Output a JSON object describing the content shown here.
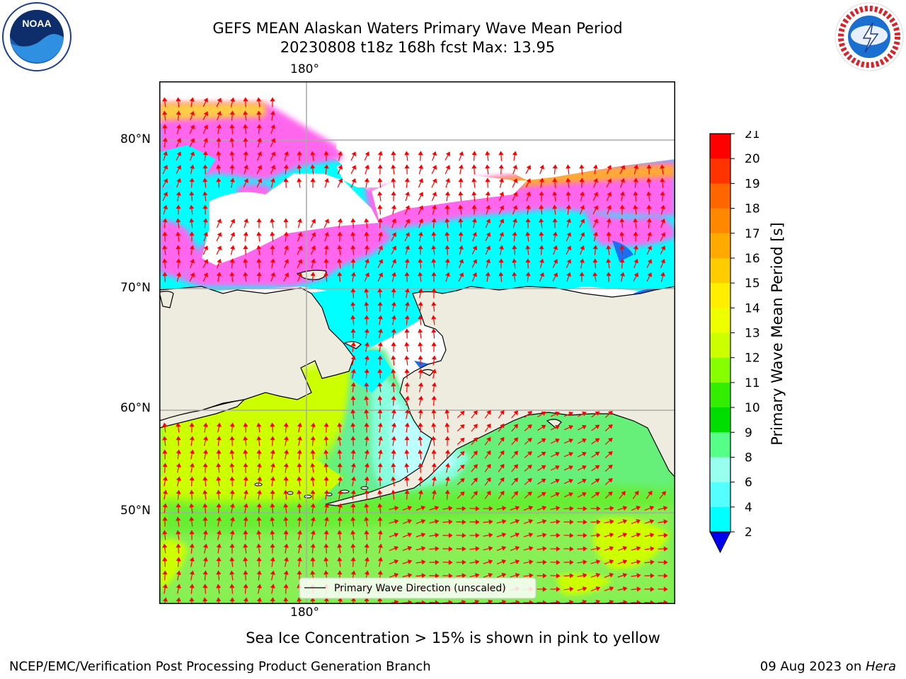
{
  "header": {
    "title_line1": "GEFS MEAN Alaskan Waters Primary Wave Mean Period",
    "title_line2": "20230808 t18z 168h fcst   Max: 13.95"
  },
  "logos": {
    "left": "noaa-logo",
    "left_text": "NOAA",
    "right": "nws-logo",
    "right_text": "NATIONAL WEATHER SERVICE"
  },
  "map": {
    "lon_label_top": "180°",
    "lon_label_bottom": "180°",
    "lat_labels": [
      "80°N",
      "70°N",
      "60°N",
      "50°N"
    ],
    "legend_label": "Primary Wave Direction (unscaled)",
    "colors": {
      "land": "#eeecdf",
      "arrow": "#ff0000",
      "grid": "#aaaaaa"
    }
  },
  "colorbar": {
    "label": "Primary Wave Mean Period [s]",
    "ticks": [
      "21",
      "20",
      "19",
      "18",
      "17",
      "16",
      "15",
      "14",
      "13",
      "12",
      "11",
      "10",
      "9",
      "8",
      "6",
      "4",
      "2"
    ],
    "colors": [
      "#ff0000",
      "#ff3300",
      "#ff6600",
      "#ff8800",
      "#ffaa00",
      "#ffcc00",
      "#ffee00",
      "#eeff00",
      "#ccff00",
      "#88ff00",
      "#33ee00",
      "#00dd00",
      "#55ff88",
      "#99ffee",
      "#55ffff",
      "#00ffff",
      "#0088ff"
    ],
    "underflow_color": "#0000ee"
  },
  "note": "Sea Ice Concentration > 15% is shown in pink to yellow",
  "footer": {
    "left": "NCEP/EMC/Verification Post Processing Product Generation Branch",
    "right_date": "09 Aug 2023 on ",
    "right_host": "Hera"
  }
}
